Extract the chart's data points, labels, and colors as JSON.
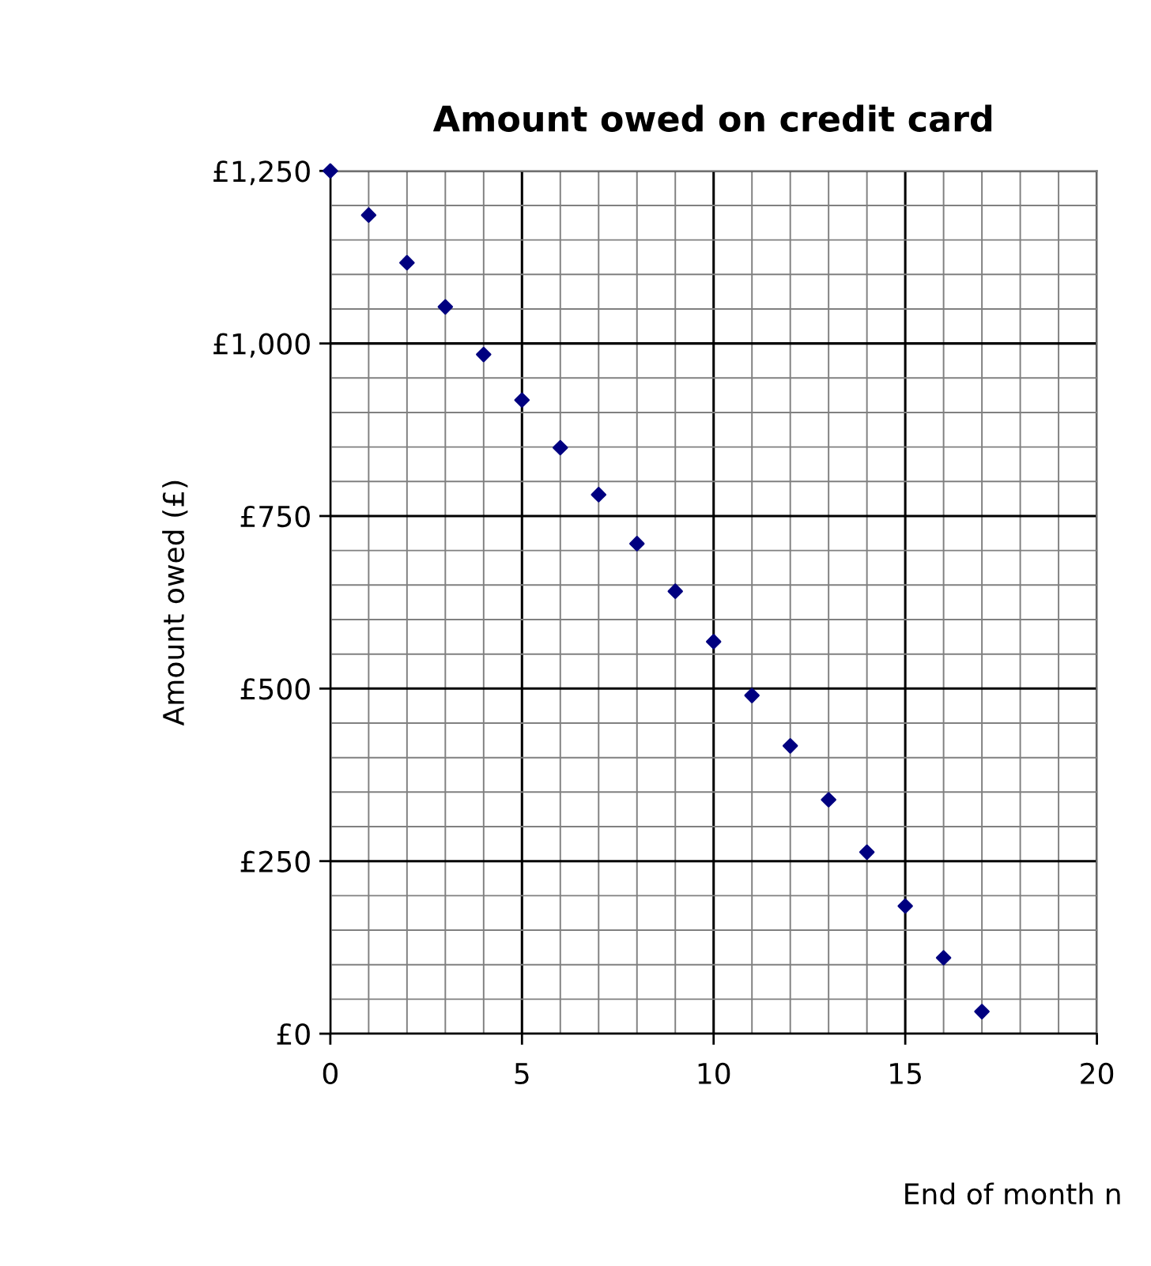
{
  "chart_data": {
    "type": "scatter",
    "title": "Amount owed on credit card",
    "xlabel": "End of month n",
    "ylabel": "Amount owed (£)",
    "x": [
      0,
      1,
      2,
      3,
      4,
      5,
      6,
      7,
      8,
      9,
      10,
      11,
      12,
      13,
      14,
      15,
      16,
      17
    ],
    "series": [
      {
        "color": "#000080",
        "values": [
          1250,
          1186,
          1117,
          1053,
          984,
          918,
          849,
          781,
          710,
          641,
          568,
          490,
          417,
          339,
          263,
          185,
          110,
          32
        ]
      }
    ],
    "marker": "diamond",
    "grid": true,
    "xlim": [
      0,
      20
    ],
    "ylim": [
      0,
      1250
    ],
    "xticks": [
      0,
      {
        "value": 1,
        "label": null
      },
      {
        "value": 2,
        "label": null
      },
      {
        "value": 3,
        "label": null
      },
      {
        "value": 4,
        "label": null
      },
      5,
      {
        "value": 6,
        "label": null
      },
      {
        "value": 7,
        "label": null
      },
      {
        "value": 8,
        "label": null
      },
      {
        "value": 9,
        "label": null
      },
      10,
      {
        "value": 11,
        "label": null
      },
      {
        "value": 12,
        "label": null
      },
      {
        "value": 13,
        "label": null
      },
      {
        "value": 14,
        "label": null
      },
      15,
      {
        "value": 16,
        "label": null
      },
      {
        "value": 17,
        "label": null
      },
      {
        "value": 18,
        "label": null
      },
      {
        "value": 19,
        "label": null
      },
      20
    ],
    "yticks": [
      {
        "value": 0,
        "label": "£0"
      },
      {
        "value": 50,
        "label": null
      },
      {
        "value": 100,
        "label": null
      },
      {
        "value": 150,
        "label": null
      },
      {
        "value": 200,
        "label": null
      },
      {
        "value": 250,
        "label": "£250"
      },
      {
        "value": 300,
        "label": null
      },
      {
        "value": 350,
        "label": null
      },
      {
        "value": 400,
        "label": null
      },
      {
        "value": 450,
        "label": null
      },
      {
        "value": 500,
        "label": "£500"
      },
      {
        "value": 550,
        "label": null
      },
      {
        "value": 600,
        "label": null
      },
      {
        "value": 650,
        "label": null
      },
      {
        "value": 700,
        "label": null
      },
      {
        "value": 750,
        "label": "£750"
      },
      {
        "value": 800,
        "label": null
      },
      {
        "value": 850,
        "label": null
      },
      {
        "value": 900,
        "label": null
      },
      {
        "value": 950,
        "label": null
      },
      {
        "value": 1000,
        "label": "£1,000"
      },
      {
        "value": 1050,
        "label": null
      },
      {
        "value": 1100,
        "label": null
      },
      {
        "value": 1150,
        "label": null
      },
      {
        "value": 1200,
        "label": null
      },
      {
        "value": 1250,
        "label": "£1,250"
      }
    ]
  }
}
